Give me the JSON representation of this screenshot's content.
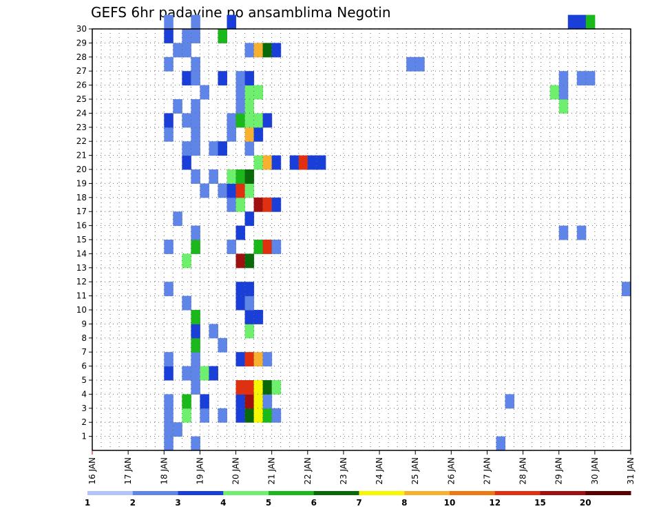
{
  "chart_data": {
    "type": "heatmap",
    "title": "GEFS 6hr padavine po ansamblima Negotin",
    "xlabel": "",
    "ylabel": "",
    "x_ticks": [
      "16 JAN",
      "17 JAN",
      "18 JAN",
      "19 JAN",
      "20 JAN",
      "21 JAN",
      "22 JAN",
      "23 JAN",
      "24 JAN",
      "25 JAN",
      "26 JAN",
      "27 JAN",
      "28 JAN",
      "29 JAN",
      "30 JAN",
      "31 JAN"
    ],
    "x_range_days": [
      16,
      31
    ],
    "y_ticks": [
      1,
      2,
      3,
      4,
      5,
      6,
      7,
      8,
      9,
      10,
      11,
      12,
      13,
      14,
      15,
      16,
      17,
      18,
      19,
      20,
      21,
      22,
      23,
      24,
      25,
      26,
      27,
      28,
      29,
      30
    ],
    "y_range": [
      0,
      30
    ],
    "grid": true,
    "colorbar": {
      "labels": [
        "1",
        "2",
        "3",
        "4",
        "5",
        "6",
        "7",
        "8",
        "10",
        "12",
        "15",
        "20"
      ],
      "colors": [
        "#b0c4f7",
        "#5f85e8",
        "#1a3fd8",
        "#6ef06e",
        "#1ab81a",
        "#0a6a0a",
        "#f7f700",
        "#f8b030",
        "#f07810",
        "#e03010",
        "#a01010",
        "#5a0000"
      ]
    },
    "cells": [
      [
        18.0,
        0,
        1
      ],
      [
        18.0,
        1,
        1
      ],
      [
        18.0,
        2,
        1
      ],
      [
        18.0,
        3,
        1
      ],
      [
        18.0,
        5,
        2
      ],
      [
        18.0,
        6,
        1
      ],
      [
        18.0,
        11,
        1
      ],
      [
        18.0,
        14,
        1
      ],
      [
        18.0,
        22,
        1
      ],
      [
        18.0,
        23,
        2
      ],
      [
        18.0,
        27,
        1
      ],
      [
        18.0,
        29,
        2
      ],
      [
        18.0,
        30,
        1
      ],
      [
        18.25,
        1,
        1
      ],
      [
        18.25,
        16,
        1
      ],
      [
        18.25,
        24,
        1
      ],
      [
        18.25,
        28,
        1
      ],
      [
        18.5,
        2,
        3
      ],
      [
        18.5,
        3,
        4
      ],
      [
        18.5,
        5,
        1
      ],
      [
        18.5,
        10,
        1
      ],
      [
        18.5,
        13,
        3
      ],
      [
        18.5,
        20,
        2
      ],
      [
        18.5,
        21,
        1
      ],
      [
        18.5,
        23,
        1
      ],
      [
        18.5,
        26,
        2
      ],
      [
        18.5,
        28,
        1
      ],
      [
        18.5,
        29,
        1
      ],
      [
        18.75,
        0,
        1
      ],
      [
        18.75,
        4,
        1
      ],
      [
        18.75,
        5,
        1
      ],
      [
        18.75,
        6,
        1
      ],
      [
        18.75,
        7,
        4
      ],
      [
        18.75,
        8,
        2
      ],
      [
        18.75,
        9,
        4
      ],
      [
        18.75,
        14,
        4
      ],
      [
        18.75,
        15,
        1
      ],
      [
        18.75,
        19,
        1
      ],
      [
        18.75,
        21,
        1
      ],
      [
        18.75,
        22,
        1
      ],
      [
        18.75,
        23,
        1
      ],
      [
        18.75,
        24,
        1
      ],
      [
        18.75,
        26,
        1
      ],
      [
        18.75,
        27,
        1
      ],
      [
        18.75,
        29,
        1
      ],
      [
        18.75,
        30,
        1
      ],
      [
        19.0,
        2,
        1
      ],
      [
        19.0,
        3,
        2
      ],
      [
        19.0,
        5,
        3
      ],
      [
        19.0,
        18,
        1
      ],
      [
        19.0,
        25,
        1
      ],
      [
        19.25,
        5,
        2
      ],
      [
        19.25,
        8,
        1
      ],
      [
        19.25,
        19,
        1
      ],
      [
        19.25,
        21,
        1
      ],
      [
        19.5,
        2,
        1
      ],
      [
        19.5,
        7,
        1
      ],
      [
        19.5,
        18,
        1
      ],
      [
        19.5,
        21,
        2
      ],
      [
        19.5,
        26,
        2
      ],
      [
        19.5,
        29,
        4
      ],
      [
        19.75,
        14,
        1
      ],
      [
        19.75,
        17,
        1
      ],
      [
        19.75,
        18,
        2
      ],
      [
        19.75,
        19,
        3
      ],
      [
        19.75,
        22,
        1
      ],
      [
        19.75,
        23,
        1
      ],
      [
        19.75,
        30,
        2
      ],
      [
        20.0,
        2,
        2
      ],
      [
        20.0,
        3,
        2
      ],
      [
        20.0,
        4,
        9
      ],
      [
        20.0,
        6,
        2
      ],
      [
        20.0,
        10,
        2
      ],
      [
        20.0,
        11,
        2
      ],
      [
        20.0,
        13,
        10
      ],
      [
        20.0,
        15,
        2
      ],
      [
        20.0,
        17,
        3
      ],
      [
        20.0,
        18,
        9
      ],
      [
        20.0,
        19,
        4
      ],
      [
        20.0,
        23,
        4
      ],
      [
        20.0,
        24,
        1
      ],
      [
        20.0,
        25,
        1
      ],
      [
        20.0,
        26,
        1
      ],
      [
        20.25,
        2,
        5
      ],
      [
        20.25,
        3,
        10
      ],
      [
        20.25,
        4,
        9
      ],
      [
        20.25,
        6,
        9
      ],
      [
        20.25,
        8,
        3
      ],
      [
        20.25,
        9,
        2
      ],
      [
        20.25,
        10,
        1
      ],
      [
        20.25,
        11,
        2
      ],
      [
        20.25,
        13,
        5
      ],
      [
        20.25,
        16,
        2
      ],
      [
        20.25,
        18,
        3
      ],
      [
        20.25,
        19,
        5
      ],
      [
        20.25,
        21,
        1
      ],
      [
        20.25,
        22,
        7
      ],
      [
        20.25,
        23,
        3
      ],
      [
        20.25,
        24,
        3
      ],
      [
        20.25,
        25,
        3
      ],
      [
        20.25,
        26,
        2
      ],
      [
        20.25,
        28,
        1
      ],
      [
        20.5,
        2,
        6
      ],
      [
        20.5,
        3,
        6
      ],
      [
        20.5,
        4,
        6
      ],
      [
        20.5,
        6,
        7
      ],
      [
        20.5,
        9,
        2
      ],
      [
        20.5,
        14,
        4
      ],
      [
        20.5,
        17,
        10
      ],
      [
        20.5,
        20,
        3
      ],
      [
        20.5,
        22,
        2
      ],
      [
        20.5,
        23,
        3
      ],
      [
        20.5,
        25,
        3
      ],
      [
        20.5,
        28,
        7
      ],
      [
        20.75,
        2,
        4
      ],
      [
        20.75,
        3,
        1
      ],
      [
        20.75,
        4,
        5
      ],
      [
        20.75,
        6,
        1
      ],
      [
        20.75,
        14,
        9
      ],
      [
        20.75,
        17,
        9
      ],
      [
        20.75,
        20,
        7
      ],
      [
        20.75,
        23,
        2
      ],
      [
        20.75,
        28,
        5
      ],
      [
        21.0,
        2,
        1
      ],
      [
        21.0,
        4,
        3
      ],
      [
        21.0,
        14,
        1
      ],
      [
        21.0,
        17,
        2
      ],
      [
        21.0,
        20,
        2
      ],
      [
        21.0,
        28,
        2
      ],
      [
        21.5,
        20,
        2
      ],
      [
        21.75,
        20,
        9
      ],
      [
        22.0,
        20,
        2
      ],
      [
        22.25,
        20,
        2
      ],
      [
        24.75,
        27,
        1
      ],
      [
        25.0,
        27,
        1
      ],
      [
        27.25,
        0,
        1
      ],
      [
        27.5,
        3,
        1
      ],
      [
        28.75,
        25,
        3
      ],
      [
        29.0,
        24,
        3
      ],
      [
        29.0,
        25,
        1
      ],
      [
        29.0,
        26,
        1
      ],
      [
        29.0,
        15,
        1
      ],
      [
        29.25,
        30,
        2
      ],
      [
        29.5,
        26,
        1
      ],
      [
        29.5,
        15,
        1
      ],
      [
        29.5,
        30,
        2
      ],
      [
        29.75,
        26,
        1
      ],
      [
        29.75,
        30,
        4
      ],
      [
        30.75,
        11,
        1
      ]
    ]
  }
}
